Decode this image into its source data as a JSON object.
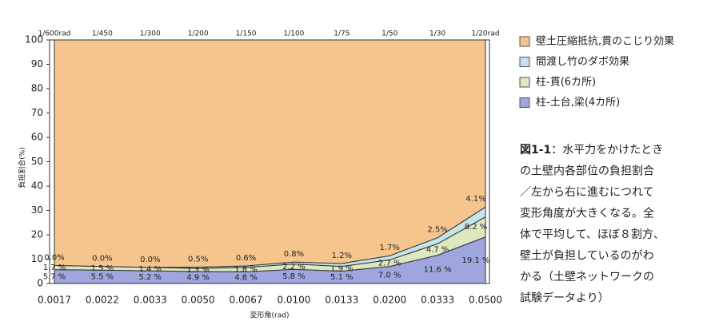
{
  "chart_data": {
    "type": "stacked_area",
    "x_label": "変形角(rad)",
    "y_label": "負担割合(%)",
    "categories": [
      "0.0017",
      "0.0022",
      "0.0033",
      "0.0050",
      "0.0067",
      "0.0100",
      "0.0133",
      "0.0200",
      "0.0333",
      "0.0500"
    ],
    "top_labels": [
      "1/600rad",
      "1/450",
      "1/300",
      "1/200",
      "1/150",
      "1/100",
      "1/75",
      "1/50",
      "1/30",
      "1/20rad"
    ],
    "ylim": [
      0,
      100
    ],
    "yticks": [
      0,
      10,
      20,
      30,
      40,
      50,
      60,
      70,
      80,
      90,
      100
    ],
    "series": [
      {
        "name": "柱-土台,梁(4カ所)",
        "color": "#9ea6dd",
        "values": [
          5.7,
          5.5,
          5.2,
          4.9,
          4.8,
          5.8,
          5.1,
          7.0,
          11.6,
          19.1
        ],
        "value_labels": [
          "5.7 %",
          "5.5 %",
          "5.2 %",
          "4.9 %",
          "4.8 %",
          "5.8 %",
          "5.1 %",
          "7.0 %",
          "11.6 %",
          "19.1 %"
        ]
      },
      {
        "name": "柱-貫(6カ所)",
        "color": "#dde8bf",
        "values": [
          1.7,
          1.5,
          1.4,
          1.3,
          1.8,
          2.2,
          1.9,
          2.7,
          4.7,
          8.2
        ],
        "value_labels": [
          "1.7 %",
          "1.5 %",
          "1.4 %",
          "1.3 %",
          "1.8 %",
          "2.2 %",
          "1.9 %",
          "2.7 %",
          "4.7 %",
          "8.2 %"
        ]
      },
      {
        "name": "間渡し竹のダボ効果",
        "color": "#c2e4ea",
        "values": [
          0.0,
          0.0,
          0.0,
          0.5,
          0.6,
          0.8,
          1.2,
          1.7,
          2.5,
          4.1
        ],
        "value_labels": [
          "0.0%",
          "0.0%",
          "0.0%",
          "0.5%",
          "0.6%",
          "0.8%",
          "1.2%",
          "1.7%",
          "2.5%",
          "4.1%"
        ]
      },
      {
        "name": "壁土圧縮抵抗,貫のこじり効果",
        "color": "#f6c58e",
        "values": [
          92.6,
          93.0,
          93.4,
          93.3,
          92.8,
          91.2,
          91.8,
          88.6,
          81.2,
          68.6
        ]
      }
    ],
    "caption_label": "図1-1",
    "caption_lines": [
      "：水平力をかけたとき",
      "の土壁内各部位の負担割合",
      "／左から右に進むにつれて",
      "変形角度が大きくなる。全",
      "体で平均して、ほぼ８割方、",
      "壁土が負担しているのがわ",
      "かる（土壁ネットワークの",
      "試験データより）"
    ]
  }
}
